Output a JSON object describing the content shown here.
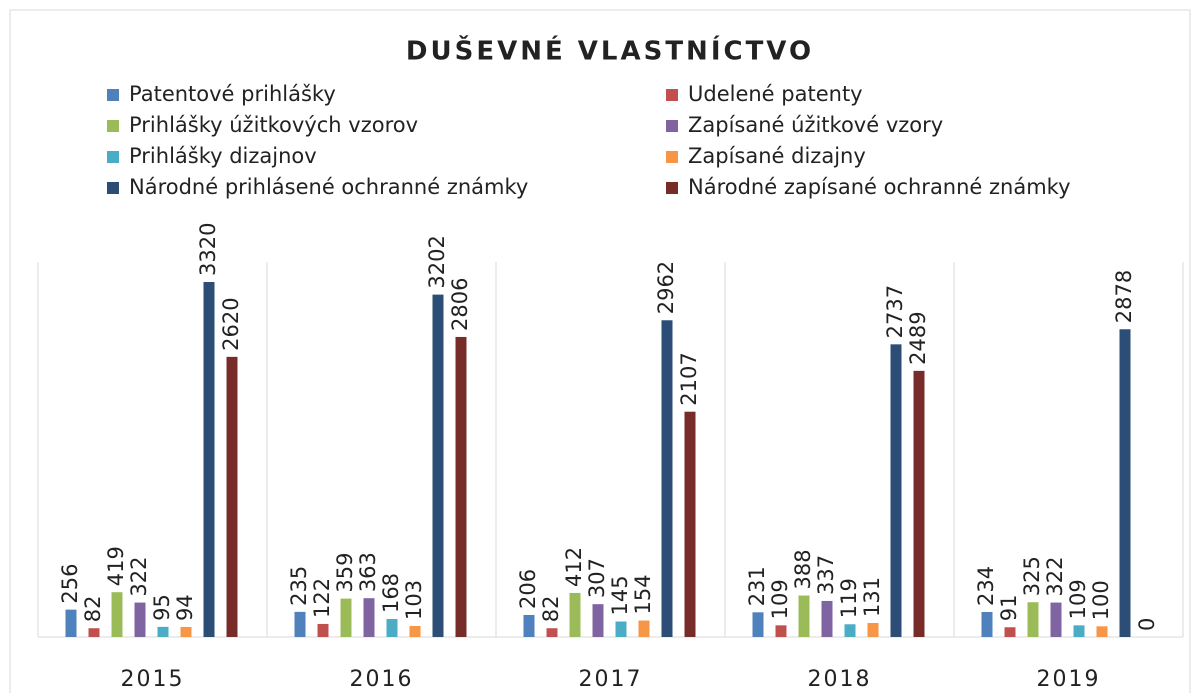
{
  "chart_data": {
    "type": "bar",
    "title": "DUŠEVNÉ VLASTNÍCTVO",
    "categories": [
      "2015",
      "2016",
      "2017",
      "2018",
      "2019"
    ],
    "series": [
      {
        "name": "Patentové prihlášky",
        "color": "#4f81bd",
        "values": [
          256,
          235,
          206,
          231,
          234
        ]
      },
      {
        "name": "Udelené patenty",
        "color": "#c0504d",
        "values": [
          82,
          122,
          82,
          109,
          91
        ]
      },
      {
        "name": "Prihlášky úžitkových vzorov",
        "color": "#9bbb59",
        "values": [
          419,
          359,
          412,
          388,
          325
        ]
      },
      {
        "name": "Zapísané úžitkové vzory",
        "color": "#8064a2",
        "values": [
          322,
          363,
          307,
          337,
          322
        ]
      },
      {
        "name": "Prihlášky dizajnov",
        "color": "#4bacc6",
        "values": [
          95,
          168,
          145,
          119,
          109
        ]
      },
      {
        "name": "Zapísané dizajny",
        "color": "#f79646",
        "values": [
          94,
          103,
          154,
          131,
          100
        ]
      },
      {
        "name": "Národné prihlásené ochranné známky",
        "color": "#2c4d75",
        "values": [
          3320,
          3202,
          2962,
          2737,
          2878
        ]
      },
      {
        "name": "Národné zapísané ochranné známky",
        "color": "#772c2a",
        "values": [
          2620,
          2806,
          2107,
          2489,
          0
        ]
      }
    ],
    "legend": "top",
    "grid": true
  }
}
